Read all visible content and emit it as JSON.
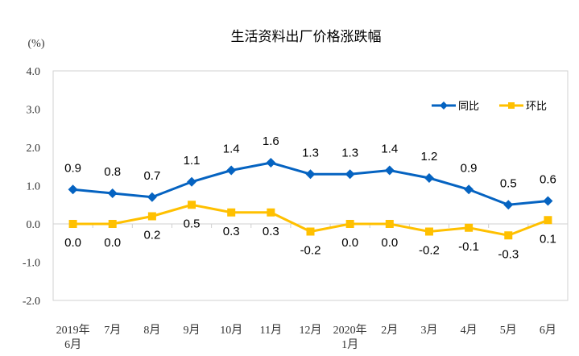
{
  "chart_data": {
    "type": "line",
    "title": "生活资料出厂价格涨跌幅",
    "ylabel": "(%)",
    "xlabel": "",
    "ylim": [
      -2.0,
      4.0
    ],
    "yticks": [
      "4.0",
      "3.0",
      "2.0",
      "1.0",
      "0.0",
      "-1.0",
      "-2.0"
    ],
    "ytick_values": [
      4,
      3,
      2,
      1,
      0,
      -1,
      -2
    ],
    "grid": false,
    "legend_position": "top-right",
    "categories": [
      [
        "2019年",
        "6月"
      ],
      [
        "7月"
      ],
      [
        "8月"
      ],
      [
        "9月"
      ],
      [
        "10月"
      ],
      [
        "11月"
      ],
      [
        "12月"
      ],
      [
        "2020年",
        "1月"
      ],
      [
        "2月"
      ],
      [
        "3月"
      ],
      [
        "4月"
      ],
      [
        "5月"
      ],
      [
        "6月"
      ]
    ],
    "series": [
      {
        "name": "同比",
        "color": "#0563C1",
        "marker": "diamond",
        "values": [
          0.9,
          0.8,
          0.7,
          1.1,
          1.4,
          1.6,
          1.3,
          1.3,
          1.4,
          1.2,
          0.9,
          0.5,
          0.6
        ],
        "labels": [
          "0.9",
          "0.8",
          "0.7",
          "1.1",
          "1.4",
          "1.6",
          "1.3",
          "1.3",
          "1.4",
          "1.2",
          "0.9",
          "0.5",
          "0.6"
        ]
      },
      {
        "name": "环比",
        "color": "#FFC000",
        "marker": "square",
        "values": [
          0.0,
          0.0,
          0.2,
          0.5,
          0.3,
          0.3,
          -0.2,
          0.0,
          0.0,
          -0.2,
          -0.1,
          -0.3,
          0.1
        ],
        "labels": [
          "0.0",
          "0.0",
          "0.2",
          "0.5",
          "0.3",
          "0.3",
          "-0.2",
          "0.0",
          "0.0",
          "-0.2",
          "-0.1",
          "-0.3",
          "0.1"
        ]
      }
    ]
  }
}
